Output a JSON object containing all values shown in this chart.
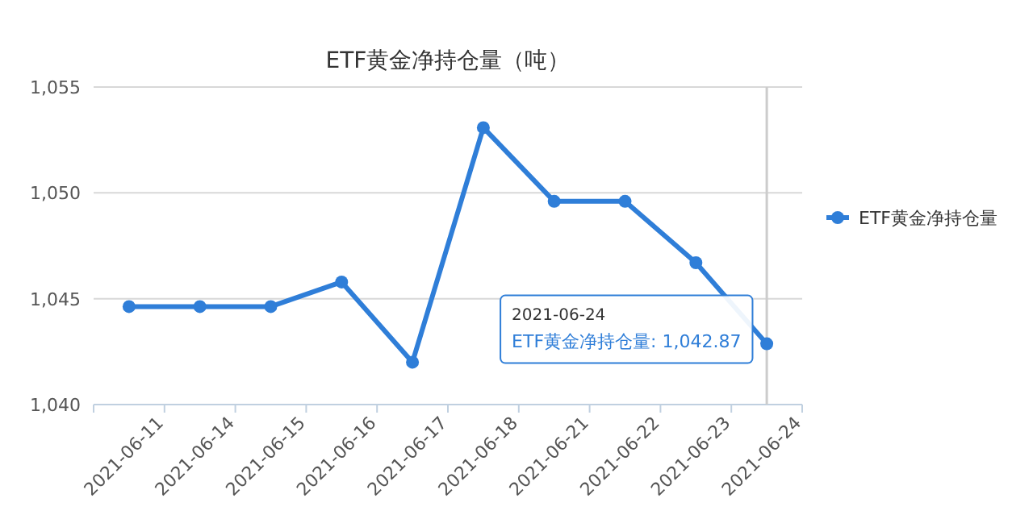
{
  "chart_data": {
    "type": "line",
    "title": "ETF黄金净持仓量（吨）",
    "categories": [
      "2021-06-11",
      "2021-06-14",
      "2021-06-15",
      "2021-06-16",
      "2021-06-17",
      "2021-06-18",
      "2021-06-21",
      "2021-06-22",
      "2021-06-23",
      "2021-06-24"
    ],
    "series": [
      {
        "name": "ETF黄金净持仓量",
        "color": "#2f7ed8",
        "values": [
          1044.63,
          1044.63,
          1044.63,
          1045.79,
          1042.0,
          1053.08,
          1049.6,
          1049.6,
          1046.7,
          1042.87
        ]
      }
    ],
    "ylim": [
      1040,
      1055
    ],
    "yticks": [
      {
        "value": 1040,
        "label": "1,040"
      },
      {
        "value": 1045,
        "label": "1,045"
      },
      {
        "value": 1050,
        "label": "1,050"
      },
      {
        "value": 1055,
        "label": "1,055"
      }
    ],
    "grid": "y",
    "legend": "right",
    "marker": "circle",
    "line_style": "solid",
    "ref_lines": [
      {
        "axis": "x",
        "value": "2021-06-24",
        "color": "#cccccc"
      }
    ],
    "annotations": [
      {
        "text": "2021-06-24\nETF黄金净持仓量: 1,042.87",
        "x": "2021-06-24",
        "y": 1042.87
      }
    ]
  }
}
